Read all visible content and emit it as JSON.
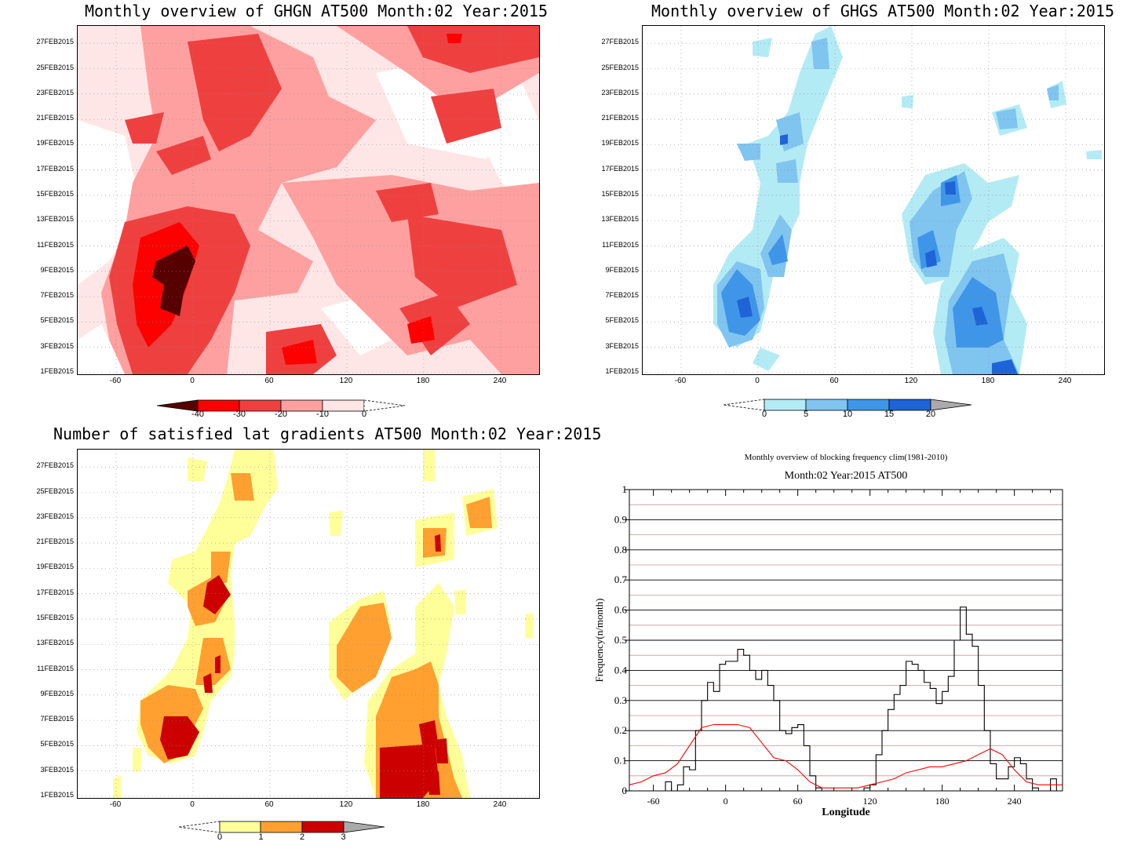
{
  "panels": {
    "ghgn": {
      "title": "Monthly overview of GHGN AT500 Month:02 Year:2015",
      "colorbar_labels": [
        "-40",
        "-30",
        "-20",
        "-10",
        "0"
      ],
      "colors": [
        "#560000",
        "#ff0000",
        "#ef4040",
        "#ffa0a0",
        "#ffe6e6",
        "#ffffff"
      ]
    },
    "ghgs": {
      "title": "Monthly overview of GHGS AT500 Month:02 Year:2015",
      "colorbar_labels": [
        "0",
        "5",
        "10",
        "15",
        "20"
      ],
      "colors": [
        "#ffffff",
        "#b3ebf5",
        "#80c4f0",
        "#3f96e8",
        "#1e64d7",
        "#aaaaaa"
      ]
    },
    "gradients": {
      "title": "Number of satisfied lat gradients AT500 Month:02 Year:2015",
      "colorbar_labels": [
        "0",
        "1",
        "2",
        "3"
      ],
      "colors": [
        "#ffffff",
        "#ffff9a",
        "#ffa030",
        "#cc0000",
        "#aaaaaa"
      ]
    }
  },
  "hovmoller_axes": {
    "x_ticks": [
      "-60",
      "0",
      "60",
      "120",
      "180",
      "240"
    ],
    "y_ticks": [
      "1FEB2015",
      "3FEB2015",
      "5FEB2015",
      "7FEB2015",
      "9FEB2015",
      "11FEB2015",
      "13FEB2015",
      "15FEB2015",
      "17FEB2015",
      "19FEB2015",
      "21FEB2015",
      "23FEB2015",
      "25FEB2015",
      "27FEB2015"
    ]
  },
  "blocking_frequency": {
    "title_line1": "Monthly overview of blocking frequency clim(1981-2010)",
    "title_line2": "Month:02 Year:2015  AT500",
    "xlabel": "Longitude",
    "ylabel": "Frequency(n/month)",
    "x_ticks": [
      "-60",
      "0",
      "60",
      "120",
      "180",
      "240"
    ],
    "y_ticks": [
      "0",
      "0.1",
      "0.2",
      "0.3",
      "0.4",
      "0.5",
      "0.6",
      "0.7",
      "0.8",
      "0.9",
      "1"
    ],
    "colors": {
      "current": "#000000",
      "climatology": "#ff0000",
      "grid_major": "#000000",
      "grid_minor": "#c89696"
    }
  },
  "chart_data": [
    {
      "type": "heatmap",
      "title": "Monthly overview of GHGN AT500 Month:02 Year:2015",
      "xlim": [
        -90,
        270
      ],
      "ylim": [
        "1FEB2015",
        "28FEB2015"
      ],
      "levels": [
        -40,
        -30,
        -20,
        -10,
        0
      ],
      "minima_regions": [
        {
          "lon": -5,
          "date": "8FEB2015",
          "value": -40
        },
        {
          "lon": -20,
          "date": "10FEB2015",
          "value": -30
        },
        {
          "lon": 10,
          "date": "14FEB2015",
          "value": -20
        },
        {
          "lon": 90,
          "date": "2FEB2015",
          "value": -30
        },
        {
          "lon": 200,
          "date": "4FEB2015",
          "value": -30
        },
        {
          "lon": 230,
          "date": "27FEB2015",
          "value": -30
        },
        {
          "lon": 50,
          "date": "26FEB2015",
          "value": -30
        }
      ]
    },
    {
      "type": "heatmap",
      "title": "Monthly overview of GHGS AT500 Month:02 Year:2015",
      "xlim": [
        -90,
        270
      ],
      "ylim": [
        "1FEB2015",
        "28FEB2015"
      ],
      "levels": [
        0,
        5,
        10,
        15,
        20
      ],
      "maxima_regions": [
        {
          "lon": -10,
          "date": "7FEB2015",
          "value": 15
        },
        {
          "lon": 25,
          "date": "11FEB2015",
          "value": 15
        },
        {
          "lon": 140,
          "date": "10FEB2015",
          "value": 15
        },
        {
          "lon": 160,
          "date": "15FEB2015",
          "value": 15
        },
        {
          "lon": 185,
          "date": "5FEB2015",
          "value": 15
        },
        {
          "lon": 195,
          "date": "1FEB2015",
          "value": 15
        }
      ]
    },
    {
      "type": "heatmap",
      "title": "Number of satisfied lat gradients AT500 Month:02 Year:2015",
      "xlim": [
        -90,
        270
      ],
      "ylim": [
        "1FEB2015",
        "28FEB2015"
      ],
      "levels": [
        0,
        1,
        2,
        3
      ],
      "maxima_regions": [
        {
          "lon": 0,
          "date": "6FEB2015",
          "value": 3
        },
        {
          "lon": 28,
          "date": "16FEB2015",
          "value": 3
        },
        {
          "lon": 185,
          "date": "3FEB2015",
          "value": 3
        },
        {
          "lon": 200,
          "date": "5FEB2015",
          "value": 3
        },
        {
          "lon": 200,
          "date": "21FEB2015",
          "value": 3
        }
      ]
    },
    {
      "type": "line",
      "title": "Monthly overview of blocking frequency clim(1981-2010)",
      "subtitle": "Month:02 Year:2015  AT500",
      "xlabel": "Longitude",
      "ylabel": "Frequency(n/month)",
      "xlim": [
        -80,
        280
      ],
      "ylim": [
        0,
        1
      ],
      "series": [
        {
          "x": [
            -80,
            -55,
            -50,
            -45,
            -40,
            -35,
            -30,
            -25,
            -20,
            -15,
            -10,
            -5,
            0,
            5,
            10,
            15,
            20,
            25,
            30,
            35,
            40,
            45,
            50,
            55,
            60,
            65,
            70,
            75,
            80,
            90,
            100,
            110,
            115,
            120,
            125,
            130,
            135,
            140,
            145,
            150,
            155,
            160,
            165,
            170,
            175,
            180,
            185,
            190,
            195,
            200,
            205,
            210,
            215,
            220,
            225,
            230,
            235,
            240,
            245,
            250,
            255,
            260,
            265,
            270,
            275
          ],
          "values": [
            0,
            0,
            0.03,
            0,
            0.02,
            0.08,
            0.07,
            0.2,
            0.3,
            0.36,
            0.33,
            0.42,
            0.43,
            0.43,
            0.47,
            0.45,
            0.4,
            0.37,
            0.4,
            0.35,
            0.3,
            0.2,
            0.19,
            0.21,
            0.22,
            0.15,
            0.05,
            0.01,
            0,
            0,
            0,
            0,
            0.01,
            0.02,
            0.12,
            0.2,
            0.27,
            0.32,
            0.35,
            0.43,
            0.42,
            0.4,
            0.36,
            0.34,
            0.29,
            0.33,
            0.38,
            0.5,
            0.61,
            0.52,
            0.48,
            0.35,
            0.2,
            0.09,
            0.04,
            0.04,
            0.08,
            0.11,
            0.09,
            0.04,
            0.01,
            0,
            0,
            0.04,
            0
          ]
        },
        {
          "x": [
            -80,
            -70,
            -60,
            -50,
            -40,
            -30,
            -20,
            -10,
            0,
            10,
            20,
            30,
            40,
            50,
            60,
            70,
            80,
            90,
            100,
            110,
            120,
            130,
            140,
            150,
            160,
            170,
            180,
            190,
            200,
            210,
            220,
            230,
            240,
            250,
            260,
            270,
            280
          ],
          "values": [
            0.02,
            0.03,
            0.05,
            0.06,
            0.09,
            0.15,
            0.21,
            0.22,
            0.22,
            0.22,
            0.21,
            0.16,
            0.11,
            0.1,
            0.07,
            0.03,
            0.01,
            0.01,
            0.01,
            0.01,
            0.02,
            0.03,
            0.04,
            0.06,
            0.07,
            0.08,
            0.08,
            0.09,
            0.1,
            0.12,
            0.14,
            0.12,
            0.07,
            0.03,
            0.02,
            0.02,
            0.02
          ]
        }
      ]
    }
  ]
}
